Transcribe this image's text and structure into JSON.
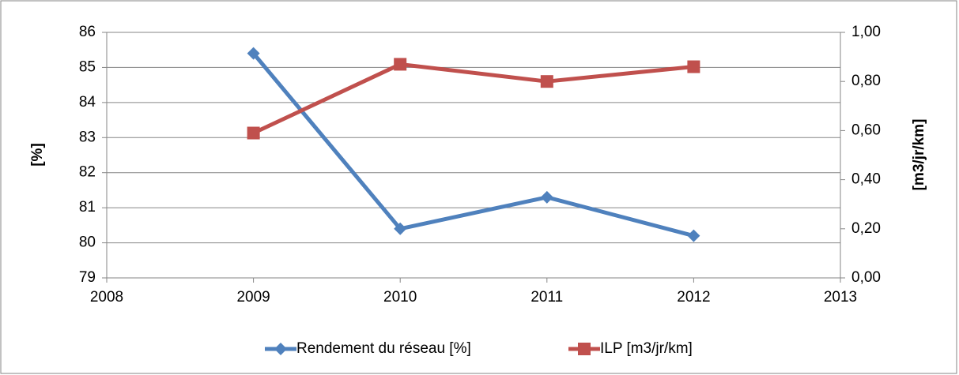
{
  "chart_data": {
    "type": "line",
    "x": [
      2009,
      2010,
      2011,
      2012
    ],
    "xlim": [
      2008,
      2013
    ],
    "xticks": [
      2008,
      2009,
      2010,
      2011,
      2012,
      2013
    ],
    "ylim": [
      79,
      86
    ],
    "yticks": [
      79,
      80,
      81,
      82,
      83,
      84,
      85,
      86
    ],
    "y2lim": [
      0,
      1
    ],
    "y2ticks": [
      {
        "value": 0,
        "label": "0,00"
      },
      {
        "value": 0.2,
        "label": "0,20"
      },
      {
        "value": 0.4,
        "label": "0,40"
      },
      {
        "value": 0.6,
        "label": "0,60"
      },
      {
        "value": 0.8,
        "label": "0,80"
      },
      {
        "value": 1,
        "label": "1,00"
      }
    ],
    "y_label": "[%]",
    "y2_label": "[m3/jr/km]",
    "grid": true,
    "legend": "bottom",
    "series": [
      {
        "name": "Rendement du réseau [%]",
        "color": "#4f81bd",
        "marker": "diamond",
        "values": [
          85.4,
          80.4,
          81.3,
          80.2
        ]
      },
      {
        "name": "ILP [m3/jr/km]",
        "color": "#c0504d",
        "marker": "square",
        "axis": "y2",
        "values": [
          0.59,
          0.87,
          0.8,
          0.86
        ]
      }
    ]
  }
}
